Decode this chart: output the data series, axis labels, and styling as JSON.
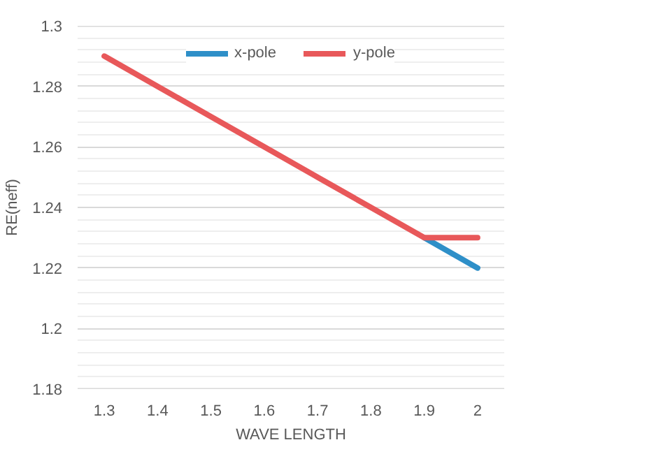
{
  "chart_data": {
    "type": "line",
    "xlabel": "WAVE LENGTH",
    "ylabel": "RE(neff)",
    "categories": [
      "1.3",
      "1.4",
      "1.5",
      "1.6",
      "1.7",
      "1.8",
      "1.9",
      "2"
    ],
    "series": [
      {
        "name": "x-pole",
        "color": "#2e8fc8",
        "values": [
          null,
          null,
          null,
          null,
          null,
          null,
          1.23,
          1.22
        ]
      },
      {
        "name": "y-pole",
        "color": "#e8585a",
        "values": [
          1.29,
          1.28,
          1.27,
          1.26,
          1.25,
          1.24,
          1.23,
          1.23
        ]
      }
    ],
    "ylim": [
      1.18,
      1.3
    ],
    "yticks": [
      1.18,
      1.2,
      1.22,
      1.24,
      1.26,
      1.28,
      1.3
    ],
    "grid": "y",
    "legend": "top",
    "marker": "none",
    "line_style": "solid"
  }
}
